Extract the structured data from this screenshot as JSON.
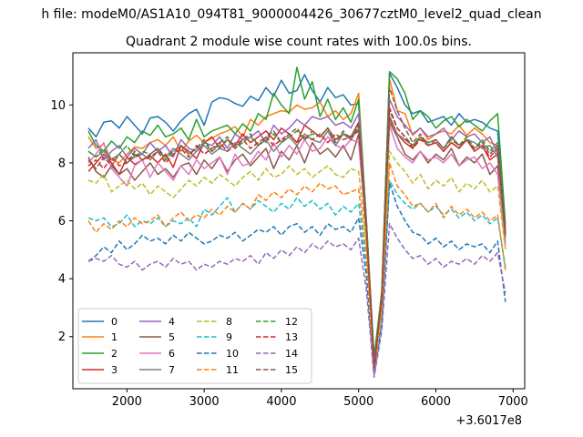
{
  "chart_data": {
    "type": "line",
    "suptitle": "h file: modeM0/AS1A10_094T81_9000004426_30677cztM0_level2_quad_clean",
    "title": "Quadrant 2 module wise count rates with 100.0s bins.",
    "xlabel": "",
    "ylabel": "",
    "x_offset_label": "+3.6017e8",
    "xlim": [
      1300,
      7150
    ],
    "ylim": [
      0.2,
      11.8
    ],
    "xticks": [
      2000,
      3000,
      4000,
      5000,
      6000,
      7000
    ],
    "yticks": [
      2,
      4,
      6,
      8,
      10
    ],
    "grid": false,
    "legend_position": "lower-left",
    "x": [
      1500,
      1600,
      1700,
      1800,
      1900,
      2000,
      2100,
      2200,
      2300,
      2400,
      2500,
      2600,
      2700,
      2800,
      2900,
      3000,
      3100,
      3200,
      3300,
      3400,
      3500,
      3600,
      3700,
      3800,
      3900,
      4000,
      4100,
      4200,
      4300,
      4400,
      4500,
      4600,
      4700,
      4800,
      4900,
      5000,
      5100,
      5200,
      5300,
      5400,
      5500,
      5600,
      5700,
      5800,
      5900,
      6000,
      6100,
      6200,
      6300,
      6400,
      6500,
      6600,
      6700,
      6800,
      6900
    ],
    "series": [
      {
        "name": "0",
        "color": "#1f77b4",
        "dash": "solid",
        "values": [
          9.2,
          8.9,
          9.4,
          9.45,
          9.2,
          9.6,
          9.3,
          9.0,
          9.55,
          9.6,
          9.4,
          9.1,
          9.45,
          9.7,
          9.85,
          9.3,
          10.1,
          10.25,
          10.2,
          10.05,
          9.95,
          10.3,
          10.15,
          10.6,
          10.3,
          10.85,
          10.4,
          10.5,
          11.05,
          10.5,
          10.1,
          10.6,
          10.25,
          10.35,
          10.0,
          10.05,
          6.0,
          1.2,
          3.5,
          11.1,
          10.6,
          10.0,
          9.7,
          9.8,
          9.4,
          9.5,
          9.6,
          9.3,
          9.7,
          9.4,
          9.5,
          9.4,
          9.2,
          9.1,
          5.8
        ]
      },
      {
        "name": "1",
        "color": "#ff7f0e",
        "dash": "solid",
        "values": [
          8.9,
          8.5,
          8.65,
          8.1,
          8.0,
          8.3,
          8.55,
          8.5,
          8.7,
          8.8,
          8.6,
          8.9,
          8.4,
          8.75,
          8.95,
          8.7,
          8.85,
          9.0,
          9.1,
          9.25,
          8.9,
          9.5,
          9.3,
          9.6,
          9.7,
          9.8,
          9.75,
          10.0,
          9.85,
          9.9,
          10.1,
          9.6,
          9.8,
          9.5,
          9.7,
          10.4,
          6.0,
          1.2,
          3.6,
          10.9,
          9.8,
          9.7,
          8.95,
          9.2,
          8.8,
          9.0,
          9.1,
          9.0,
          9.3,
          8.95,
          9.2,
          9.0,
          8.7,
          8.6,
          5.7
        ]
      },
      {
        "name": "2",
        "color": "#2ca02c",
        "dash": "solid",
        "values": [
          9.1,
          8.6,
          8.4,
          8.75,
          8.5,
          8.9,
          8.7,
          9.1,
          8.95,
          9.3,
          8.9,
          9.0,
          9.2,
          8.8,
          9.5,
          8.9,
          9.1,
          9.2,
          9.3,
          9.0,
          9.35,
          9.1,
          9.7,
          9.5,
          10.4,
          10.0,
          9.7,
          11.3,
          10.2,
          10.8,
          9.6,
          10.2,
          9.5,
          9.9,
          9.4,
          10.2,
          6.0,
          1.3,
          3.5,
          11.15,
          10.9,
          10.4,
          9.5,
          9.8,
          9.6,
          9.2,
          9.45,
          9.6,
          9.25,
          9.5,
          9.3,
          9.1,
          9.45,
          9.7,
          5.9
        ]
      },
      {
        "name": "3",
        "color": "#d62728",
        "dash": "solid",
        "values": [
          7.7,
          8.0,
          8.3,
          8.0,
          7.6,
          8.2,
          7.95,
          8.1,
          8.25,
          8.0,
          8.3,
          7.85,
          8.6,
          8.4,
          8.15,
          8.7,
          8.9,
          8.5,
          8.8,
          8.6,
          9.0,
          8.7,
          8.9,
          9.1,
          8.8,
          9.2,
          9.0,
          8.7,
          9.3,
          9.1,
          8.9,
          9.2,
          8.8,
          9.0,
          8.9,
          9.4,
          5.7,
          1.1,
          3.3,
          9.6,
          9.0,
          8.7,
          8.5,
          8.9,
          8.6,
          8.7,
          8.4,
          8.7,
          8.5,
          8.8,
          8.4,
          8.6,
          8.1,
          8.3,
          5.5
        ]
      },
      {
        "name": "4",
        "color": "#9467bd",
        "dash": "solid",
        "values": [
          8.5,
          8.8,
          8.1,
          8.4,
          8.6,
          8.2,
          8.5,
          8.3,
          8.7,
          8.4,
          8.6,
          8.2,
          8.8,
          8.5,
          8.4,
          8.7,
          8.6,
          8.9,
          8.5,
          9.0,
          8.8,
          8.9,
          9.1,
          8.7,
          9.3,
          9.0,
          9.2,
          9.5,
          9.3,
          9.6,
          9.5,
          9.6,
          9.3,
          9.4,
          9.2,
          9.7,
          5.9,
          1.0,
          3.4,
          10.2,
          9.6,
          9.3,
          9.0,
          9.2,
          8.9,
          9.0,
          9.2,
          8.8,
          9.1,
          8.9,
          9.0,
          8.7,
          8.9,
          8.3,
          5.6
        ]
      },
      {
        "name": "5",
        "color": "#8c564b",
        "dash": "solid",
        "values": [
          8.2,
          7.7,
          7.5,
          7.9,
          7.6,
          7.8,
          7.4,
          7.7,
          8.0,
          7.6,
          7.8,
          7.5,
          7.9,
          8.0,
          7.6,
          8.1,
          7.8,
          8.2,
          7.7,
          8.1,
          8.3,
          7.9,
          8.2,
          8.5,
          7.8,
          8.4,
          8.1,
          8.6,
          8.0,
          8.7,
          8.3,
          8.5,
          8.2,
          8.6,
          8.1,
          9.0,
          5.4,
          1.0,
          3.2,
          9.4,
          8.9,
          8.3,
          8.1,
          8.4,
          8.0,
          8.3,
          8.1,
          8.5,
          7.9,
          8.2,
          8.0,
          8.3,
          7.6,
          7.9,
          5.2
        ]
      },
      {
        "name": "6",
        "color": "#e377c2",
        "dash": "solid",
        "values": [
          8.0,
          8.3,
          8.7,
          7.8,
          7.5,
          7.2,
          7.9,
          8.1,
          7.5,
          8.0,
          7.7,
          7.4,
          7.9,
          7.6,
          8.1,
          7.8,
          8.0,
          8.2,
          7.6,
          8.3,
          7.9,
          8.0,
          8.4,
          8.1,
          8.7,
          8.2,
          8.6,
          8.3,
          8.8,
          8.4,
          8.5,
          8.9,
          8.6,
          8.5,
          8.8,
          8.7,
          5.6,
          0.9,
          3.1,
          9.3,
          8.5,
          8.2,
          8.0,
          8.4,
          8.1,
          8.2,
          8.0,
          8.3,
          7.9,
          8.1,
          8.2,
          7.8,
          8.0,
          7.6,
          5.1
        ]
      },
      {
        "name": "7",
        "color": "#7f7f7f",
        "dash": "solid",
        "values": [
          8.4,
          8.2,
          8.4,
          8.1,
          8.3,
          8.0,
          8.2,
          8.3,
          8.1,
          8.4,
          8.2,
          8.5,
          8.3,
          8.1,
          8.4,
          8.6,
          8.3,
          8.5,
          8.4,
          8.7,
          8.5,
          8.3,
          8.6,
          8.8,
          8.4,
          8.7,
          8.9,
          8.6,
          9.0,
          8.8,
          8.7,
          9.1,
          8.6,
          9.0,
          8.8,
          9.2,
          5.8,
          1.0,
          3.3,
          9.5,
          9.0,
          8.8,
          8.6,
          8.9,
          8.7,
          8.8,
          8.5,
          8.9,
          8.6,
          8.8,
          8.7,
          8.5,
          8.6,
          8.2,
          5.4
        ]
      },
      {
        "name": "8",
        "color": "#bcbd22",
        "dash": "dashed",
        "values": [
          7.4,
          7.3,
          7.6,
          7.0,
          7.2,
          7.4,
          7.1,
          7.3,
          6.9,
          7.2,
          7.0,
          6.8,
          7.1,
          7.4,
          7.2,
          7.5,
          7.3,
          7.6,
          7.4,
          7.2,
          7.5,
          7.7,
          7.4,
          7.8,
          7.5,
          7.6,
          7.9,
          7.6,
          7.8,
          7.5,
          7.7,
          7.9,
          7.6,
          7.5,
          7.8,
          7.7,
          5.2,
          0.9,
          3.0,
          8.4,
          8.0,
          7.7,
          7.3,
          7.6,
          7.1,
          7.4,
          7.2,
          7.5,
          7.0,
          7.3,
          7.1,
          7.4,
          7.0,
          7.2,
          5.0
        ]
      },
      {
        "name": "9",
        "color": "#17becf",
        "dash": "dashed",
        "values": [
          6.1,
          6.0,
          6.1,
          5.8,
          5.9,
          6.2,
          5.8,
          6.0,
          5.9,
          6.1,
          5.8,
          6.0,
          5.9,
          6.1,
          5.8,
          6.4,
          6.2,
          6.5,
          6.8,
          6.3,
          6.6,
          6.4,
          6.7,
          6.5,
          6.3,
          6.6,
          6.4,
          6.8,
          6.5,
          6.7,
          6.4,
          6.6,
          6.2,
          6.5,
          6.3,
          6.6,
          4.5,
          0.9,
          2.6,
          7.4,
          6.9,
          6.6,
          6.4,
          6.6,
          6.3,
          6.5,
          6.2,
          6.4,
          6.1,
          6.3,
          6.0,
          6.2,
          5.9,
          6.1,
          4.4
        ]
      },
      {
        "name": "10",
        "color": "#1f77b4",
        "dash": "dashed",
        "values": [
          4.6,
          4.8,
          5.1,
          4.9,
          5.3,
          5.0,
          5.2,
          5.5,
          5.3,
          5.4,
          5.2,
          5.5,
          5.3,
          5.6,
          5.4,
          5.2,
          5.3,
          5.5,
          5.4,
          5.6,
          5.3,
          5.5,
          5.7,
          5.6,
          5.8,
          5.5,
          5.8,
          5.9,
          5.6,
          5.8,
          5.5,
          5.9,
          5.7,
          5.8,
          5.6,
          6.1,
          4.1,
          0.7,
          2.4,
          7.3,
          6.5,
          6.0,
          5.6,
          5.5,
          5.2,
          5.4,
          5.1,
          5.3,
          5.0,
          5.2,
          5.1,
          5.2,
          4.9,
          5.3,
          3.2
        ]
      },
      {
        "name": "11",
        "color": "#ff7f0e",
        "dash": "dashed",
        "values": [
          6.0,
          5.6,
          5.9,
          5.7,
          6.0,
          5.8,
          6.1,
          5.9,
          6.0,
          6.2,
          5.8,
          6.1,
          6.3,
          6.0,
          6.2,
          6.1,
          6.4,
          6.2,
          6.5,
          6.3,
          6.6,
          6.4,
          6.9,
          6.7,
          7.0,
          6.8,
          7.1,
          6.9,
          7.2,
          7.0,
          7.3,
          7.1,
          7.2,
          6.9,
          7.0,
          7.1,
          4.8,
          0.8,
          2.9,
          8.0,
          7.2,
          6.9,
          6.5,
          6.6,
          6.3,
          6.6,
          6.1,
          6.5,
          6.2,
          6.4,
          6.1,
          6.3,
          6.0,
          6.2,
          4.3
        ]
      },
      {
        "name": "12",
        "color": "#2ca02c",
        "dash": "dashed",
        "values": [
          8.4,
          8.2,
          8.5,
          8.1,
          8.3,
          8.6,
          8.2,
          8.4,
          8.3,
          8.5,
          8.1,
          8.4,
          8.6,
          8.3,
          8.5,
          8.7,
          8.4,
          8.6,
          8.8,
          8.5,
          8.7,
          8.9,
          8.6,
          8.8,
          9.0,
          8.7,
          8.9,
          9.1,
          8.8,
          9.0,
          8.9,
          9.2,
          8.8,
          9.0,
          8.9,
          9.3,
          5.9,
          1.0,
          3.4,
          9.8,
          9.2,
          8.9,
          8.6,
          8.9,
          8.7,
          8.8,
          8.5,
          8.8,
          8.6,
          8.9,
          8.5,
          8.8,
          8.4,
          8.7,
          5.6
        ]
      },
      {
        "name": "13",
        "color": "#d62728",
        "dash": "dashed",
        "values": [
          7.9,
          8.1,
          7.8,
          8.2,
          7.9,
          8.0,
          8.3,
          8.1,
          8.2,
          8.4,
          8.0,
          8.3,
          8.5,
          8.2,
          8.6,
          8.3,
          8.5,
          8.7,
          8.4,
          8.6,
          8.8,
          8.5,
          8.7,
          8.9,
          8.6,
          8.8,
          9.0,
          8.7,
          8.9,
          8.8,
          9.0,
          8.7,
          9.0,
          8.8,
          8.9,
          9.1,
          5.7,
          0.9,
          3.3,
          9.9,
          9.2,
          8.9,
          8.5,
          8.8,
          8.6,
          8.7,
          8.4,
          8.7,
          8.5,
          8.8,
          8.4,
          8.6,
          8.2,
          8.5,
          5.5
        ]
      },
      {
        "name": "14",
        "color": "#9467bd",
        "dash": "dashed",
        "values": [
          4.6,
          4.7,
          4.6,
          4.8,
          4.5,
          4.4,
          4.6,
          4.3,
          4.5,
          4.6,
          4.4,
          4.7,
          4.5,
          4.6,
          4.3,
          4.5,
          4.4,
          4.6,
          4.5,
          4.7,
          4.6,
          4.8,
          4.5,
          4.9,
          4.7,
          5.0,
          4.8,
          5.1,
          4.9,
          5.2,
          5.0,
          5.3,
          5.1,
          5.2,
          5.0,
          5.4,
          3.6,
          0.6,
          2.2,
          5.9,
          5.4,
          5.0,
          4.7,
          4.8,
          4.5,
          4.7,
          4.4,
          4.6,
          4.5,
          4.7,
          4.5,
          4.8,
          4.6,
          4.9,
          3.5
        ]
      },
      {
        "name": "15",
        "color": "#8c564b",
        "dash": "dashed",
        "values": [
          8.1,
          7.8,
          8.2,
          7.9,
          8.3,
          8.0,
          8.4,
          8.1,
          8.3,
          8.5,
          8.2,
          8.4,
          8.6,
          8.3,
          8.5,
          8.8,
          8.4,
          8.7,
          8.9,
          8.5,
          8.8,
          9.0,
          8.6,
          8.9,
          9.1,
          8.7,
          9.0,
          9.2,
          8.8,
          9.1,
          8.9,
          9.2,
          8.7,
          9.1,
          8.8,
          9.3,
          5.8,
          1.0,
          3.4,
          10.6,
          9.8,
          9.2,
          8.7,
          9.0,
          8.6,
          8.8,
          8.5,
          8.9,
          8.6,
          8.8,
          8.5,
          8.7,
          8.3,
          8.6,
          5.6
        ]
      }
    ]
  }
}
